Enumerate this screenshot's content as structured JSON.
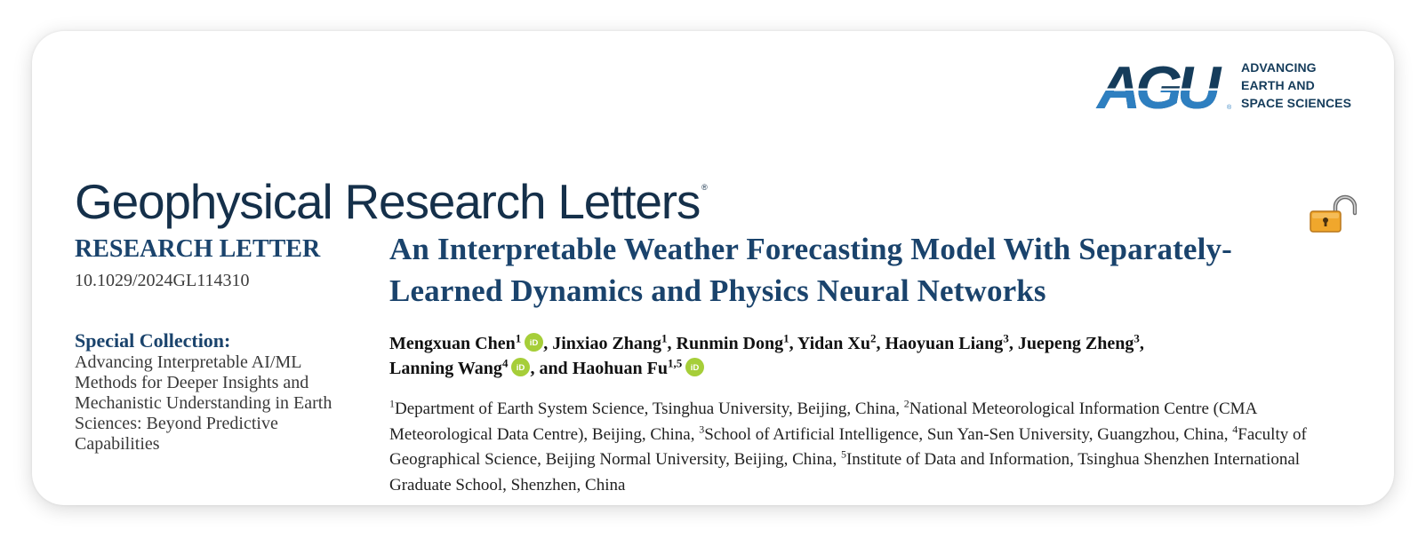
{
  "publisher": {
    "name": "AGU",
    "tagline": [
      "ADVANCING",
      "EARTH AND",
      "SPACE SCIENCES"
    ]
  },
  "journal": {
    "title": "Geophysical Research Letters",
    "reg_mark": "®"
  },
  "article": {
    "type": "RESEARCH LETTER",
    "doi": "10.1029/2024GL114310",
    "special_collection_label": "Special Collection:",
    "special_collection_text": "Advancing Interpretable AI/ML Methods for Deeper Insights and Mechanistic Understanding in Earth Sciences: Beyond Predictive Capabilities",
    "title": "An Interpretable Weather Forecasting Model With Separately-Learned Dynamics and Physics Neural Networks",
    "authors": [
      {
        "name": "Mengxuan Chen",
        "sup": "1",
        "orcid": true,
        "lead": "",
        "trail": ","
      },
      {
        "name": "Jinxiao Zhang",
        "sup": "1",
        "orcid": false,
        "lead": " ",
        "trail": ","
      },
      {
        "name": "Runmin Dong",
        "sup": "1",
        "orcid": false,
        "lead": " ",
        "trail": ","
      },
      {
        "name": "Yidan Xu",
        "sup": "2",
        "orcid": false,
        "lead": " ",
        "trail": ","
      },
      {
        "name": "Haoyuan Liang",
        "sup": "3",
        "orcid": false,
        "lead": " ",
        "trail": ","
      },
      {
        "name": "Juepeng Zheng",
        "sup": "3",
        "orcid": false,
        "lead": " ",
        "trail": ","
      },
      {
        "name": "Lanning Wang",
        "sup": "4",
        "orcid": true,
        "lead": " ",
        "trail": ","
      },
      {
        "name": "Haohuan Fu",
        "sup": "1,5",
        "orcid": true,
        "lead": " and ",
        "trail": ""
      }
    ],
    "affiliations": [
      {
        "num": "1",
        "text": "Department of Earth System Science, Tsinghua University, Beijing, China, "
      },
      {
        "num": "2",
        "text": "National Meteorological Information Centre (CMA Meteorological Data Centre), Beijing, China, "
      },
      {
        "num": "3",
        "text": "School of Artificial Intelligence, Sun Yan-Sen University, Guangzhou, China, "
      },
      {
        "num": "4",
        "text": "Faculty of Geographical Science, Beijing Normal University, Beijing, China, "
      },
      {
        "num": "5",
        "text": "Institute of Data and Information, Tsinghua Shenzhen International Graduate School, Shenzhen, China"
      }
    ]
  },
  "icons": {
    "orcid": "orcid-icon",
    "open_access": "open-access-lock-icon"
  },
  "colors": {
    "agu_navy": "#153c5b",
    "agu_blue": "#2e7fc0",
    "title_blue": "#1a436c",
    "journal_navy": "#15304a",
    "orcid_green": "#a6ce39",
    "lock_orange": "#f0a72c"
  }
}
